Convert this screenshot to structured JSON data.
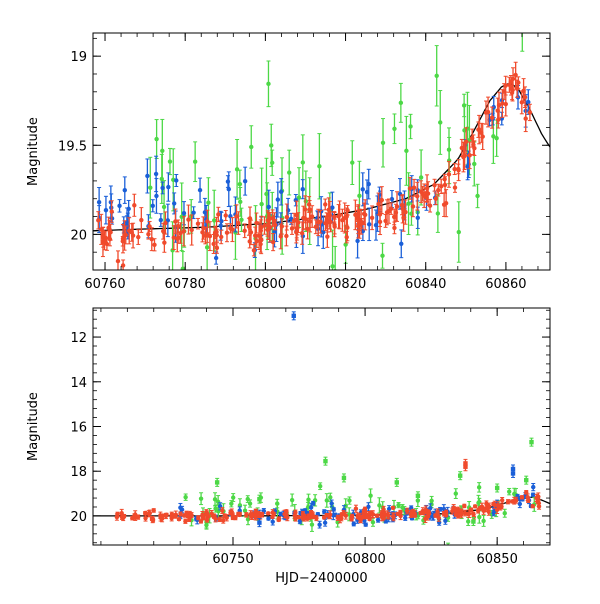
{
  "colors": {
    "red": "#f04a2c",
    "green": "#4cd846",
    "blue": "#1a5fd8",
    "model": "#000000"
  },
  "chart_data": [
    {
      "type": "scatter",
      "xlabel": "",
      "ylabel": "Magnitude",
      "xlim": [
        60757,
        60871
      ],
      "ylim": [
        20.2,
        18.87
      ],
      "y_inverted": true,
      "x_ticks": [
        60760,
        60780,
        60800,
        60820,
        60840,
        60860
      ],
      "x_tick_labels": [
        "60760",
        "60780",
        "60800",
        "60820",
        "60840",
        "60860"
      ],
      "y_ticks": [
        19,
        19.5,
        20
      ],
      "y_tick_labels": [
        "19",
        "19.5",
        "20"
      ],
      "model_curve": {
        "x": [
          60757,
          60770,
          60785,
          60800,
          60815,
          60825,
          60835,
          60842,
          60848,
          60852,
          60856,
          60859,
          60861,
          60863,
          60866,
          60869,
          60871
        ],
        "y": [
          19.98,
          19.97,
          19.96,
          19.94,
          19.9,
          19.86,
          19.8,
          19.72,
          19.58,
          19.42,
          19.25,
          19.17,
          19.15,
          19.18,
          19.3,
          19.44,
          19.51
        ]
      },
      "series": [
        {
          "color": "red",
          "trend": {
            "x": [
              60757,
              60800,
              60820,
              60835,
              60845,
              60852,
              60858,
              60861,
              60863,
              60866
            ],
            "y": [
              20.0,
              19.98,
              19.92,
              19.85,
              19.72,
              19.5,
              19.25,
              19.15,
              19.2,
              19.35
            ]
          },
          "start": 60757,
          "end": 60866,
          "count": 220,
          "scatter": 0.05,
          "err": 0.05,
          "seed": 11
        },
        {
          "color": "blue",
          "trend": {
            "x": [
              60757,
              60800,
              60820,
              60835,
              60845,
              60852,
              60858,
              60861,
              60863,
              60866
            ],
            "y": [
              19.85,
              19.9,
              19.88,
              19.84,
              19.72,
              19.5,
              19.25,
              19.15,
              19.2,
              19.35
            ]
          },
          "start": 60757,
          "end": 60866,
          "count": 90,
          "scatter": 0.1,
          "err": 0.06,
          "seed": 23
        },
        {
          "color": "green",
          "trend": {
            "x": [
              60757,
              60800,
              60820,
              60835,
              60845,
              60852,
              60858,
              60861,
              60863,
              60866
            ],
            "y": [
              19.8,
              19.78,
              19.75,
              19.7,
              19.6,
              19.45,
              19.25,
              19.15,
              19.2,
              19.35
            ]
          },
          "start": 60770,
          "end": 60866,
          "count": 70,
          "scatter": 0.25,
          "err": 0.12,
          "seed": 37
        }
      ]
    },
    {
      "type": "scatter",
      "xlabel": "HJD−2400000",
      "ylabel": "Magnitude",
      "xlim": [
        60697,
        60870
      ],
      "ylim": [
        21.3,
        10.7
      ],
      "y_inverted": true,
      "x_ticks": [
        60750,
        60800,
        60850
      ],
      "x_tick_labels": [
        "60750",
        "60800",
        "60850"
      ],
      "y_ticks": [
        12,
        14,
        16,
        18,
        20
      ],
      "y_tick_labels": [
        "12",
        "14",
        "16",
        "18",
        "20"
      ],
      "model_curve": {
        "x": [
          60697,
          60750,
          60800,
          60830,
          60845,
          60855,
          60860,
          60863,
          60866,
          60870
        ],
        "y": [
          20.0,
          20.0,
          19.97,
          19.9,
          19.7,
          19.35,
          19.18,
          19.15,
          19.25,
          19.45
        ]
      },
      "series": [
        {
          "color": "red",
          "trend": {
            "x": [
              60705,
              60800,
              60835,
              60845,
              60855,
              60860,
              60866
            ],
            "y": [
              20.0,
              19.98,
              19.85,
              19.7,
              19.35,
              19.2,
              19.35
            ]
          },
          "start": 60705,
          "end": 60866,
          "count": 230,
          "scatter": 0.12,
          "err": 0.1,
          "seed": 53
        },
        {
          "color": "blue",
          "trend": {
            "x": [
              60705,
              60800,
              60835,
              60845,
              60855,
              60860,
              60866
            ],
            "y": [
              19.9,
              19.95,
              19.85,
              19.7,
              19.35,
              19.2,
              19.35
            ]
          },
          "start": 60730,
          "end": 60866,
          "count": 90,
          "scatter": 0.2,
          "err": 0.12,
          "seed": 71
        },
        {
          "color": "green",
          "trend": {
            "x": [
              60705,
              60800,
              60835,
              60845,
              60855,
              60860,
              60866
            ],
            "y": [
              19.8,
              19.75,
              19.7,
              19.6,
              19.35,
              19.2,
              19.35
            ]
          },
          "start": 60730,
          "end": 60866,
          "count": 80,
          "scatter": 0.45,
          "err": 0.2,
          "seed": 89
        }
      ],
      "outliers": [
        {
          "x": 60773,
          "y": 11.05,
          "color": "blue"
        },
        {
          "x": 60760,
          "y": 20.3,
          "color": "blue"
        },
        {
          "x": 60744,
          "y": 18.5,
          "color": "green"
        },
        {
          "x": 60760,
          "y": 19.25,
          "color": "green"
        },
        {
          "x": 60785,
          "y": 17.55,
          "color": "green"
        },
        {
          "x": 60792,
          "y": 18.3,
          "color": "green"
        },
        {
          "x": 60812,
          "y": 18.5,
          "color": "green"
        },
        {
          "x": 60820,
          "y": 19.1,
          "color": "green"
        },
        {
          "x": 60838,
          "y": 17.8,
          "color": "red"
        },
        {
          "x": 60838,
          "y": 17.65,
          "color": "red"
        },
        {
          "x": 60850,
          "y": 18.75,
          "color": "green"
        },
        {
          "x": 60856,
          "y": 18.1,
          "color": "blue"
        },
        {
          "x": 60856,
          "y": 17.9,
          "color": "blue"
        },
        {
          "x": 60863,
          "y": 16.7,
          "color": "green"
        },
        {
          "x": 60861,
          "y": 18.4,
          "color": "green"
        },
        {
          "x": 60836,
          "y": 18.2,
          "color": "green"
        },
        {
          "x": 60841,
          "y": 20.25,
          "color": "green"
        }
      ]
    }
  ]
}
